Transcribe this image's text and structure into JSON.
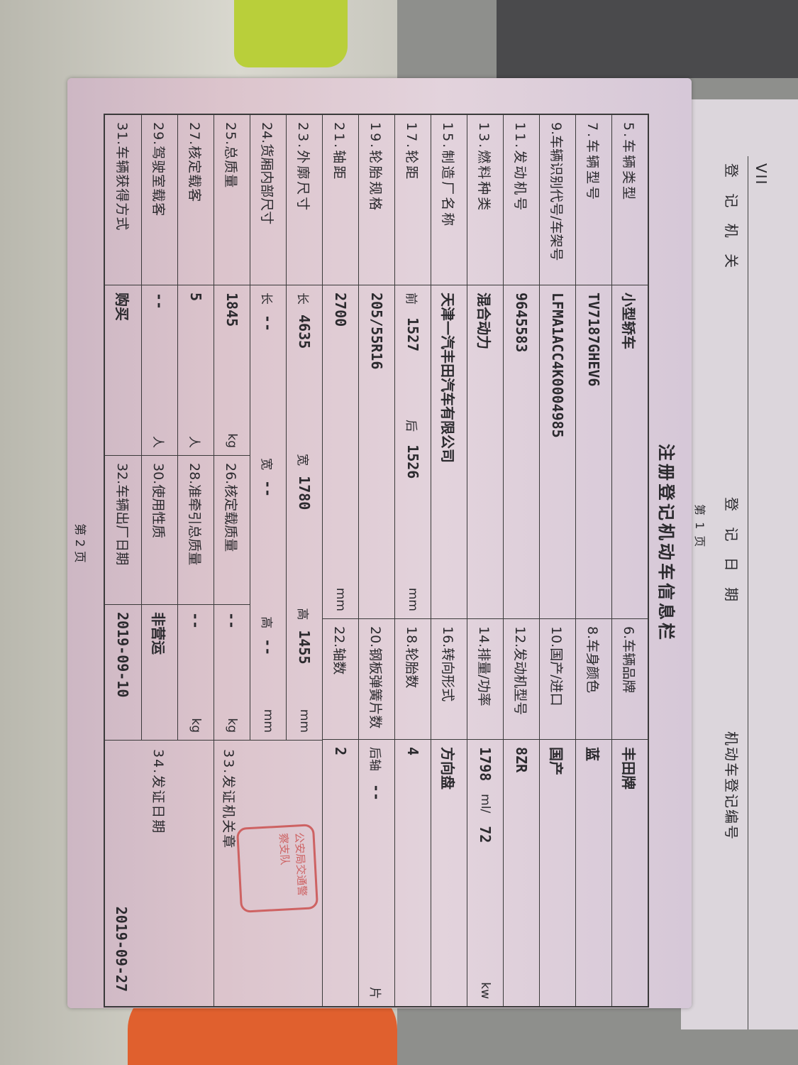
{
  "next_page": {
    "roman": "VII",
    "authority_label": "登 记 机 关",
    "date_label": "登 记 日 期",
    "reg_no_label": "机动车登记编号",
    "page_label": "第 1 页"
  },
  "document": {
    "title": "注册登记机动车信息栏",
    "page_label": "第 2 页",
    "upper_rows": [
      {
        "l1": "5.车辆类型",
        "v1": "小型轿车",
        "l2": "6.车辆品牌",
        "v2": "丰田牌"
      },
      {
        "l1": "7.车辆型号",
        "v1": "TV7187GHEV6",
        "l2": "8.车身颜色",
        "v2": "蓝"
      },
      {
        "l1": "9.车辆识别代号/车架号",
        "v1": "LFMA1ACC4K0004985",
        "l2": "10.国产/进口",
        "v2": "国产"
      },
      {
        "l1": "11.发动机号",
        "v1": "9645583",
        "l2": "12.发动机型号",
        "v2": "8ZR"
      },
      {
        "l1": "13.燃料种类",
        "v1": "混合动力",
        "l2": "14.排量/功率",
        "v2": "1798",
        "u2a": "ml/",
        "v2b": "72",
        "u2b": "kw"
      },
      {
        "l1": "15.制造厂名称",
        "v1": "天津一汽丰田汽车有限公司",
        "l2": "16.转向形式",
        "v2": "方向盘"
      },
      {
        "l1": "17.轮距",
        "p1": "前",
        "v1": "1527",
        "p2": "后",
        "v1b": "1526",
        "u1": "mm",
        "l2": "18.轮胎数",
        "v2": "4"
      },
      {
        "l1": "19.轮胎规格",
        "v1": "205/55R16",
        "l2": "20.钢板弹簧片数",
        "p3": "后轴",
        "v2": "--",
        "u2": "片"
      },
      {
        "l1": "21.轴距",
        "v1": "2700",
        "u1": "mm",
        "l2": "22.轴数",
        "v2": "2"
      }
    ],
    "dims": {
      "l": "23.外廓尺寸",
      "len_l": "长",
      "len": "4635",
      "wid_l": "宽",
      "wid": "1780",
      "hei_l": "高",
      "hei": "1455",
      "unit": "mm"
    },
    "cargo": {
      "l": "24.货厢内部尺寸",
      "len_l": "长",
      "len": "--",
      "wid_l": "宽",
      "wid": "--",
      "hei_l": "高",
      "hei": "--",
      "unit": "mm"
    },
    "lower_rows": [
      {
        "l1": "25.总质量",
        "v1": "1845",
        "u1": "kg",
        "l2": "26.核定载质量",
        "v2": "--",
        "u2": "kg"
      },
      {
        "l1": "27.核定载客",
        "v1": "5",
        "u1": "人",
        "l2": "28.准牵引总质量",
        "v2": "--",
        "u2": "kg"
      },
      {
        "l1": "29.驾驶室载客",
        "v1": "--",
        "u1": "人",
        "l2": "30.使用性质",
        "v2": "非营运",
        "u2": ""
      },
      {
        "l1": "31.车辆获得方式",
        "v1": "购买",
        "u1": "",
        "l2": "32.车辆出厂日期",
        "v2": "2019-09-10",
        "u2": ""
      }
    ],
    "issuer_seal_label": "33.发证机关章",
    "issue_date_label": "34.发证日期",
    "issue_date": "2019-09-27",
    "stamp_text": "公安局交通警察支队",
    "stamp_color": "#c8403e"
  }
}
